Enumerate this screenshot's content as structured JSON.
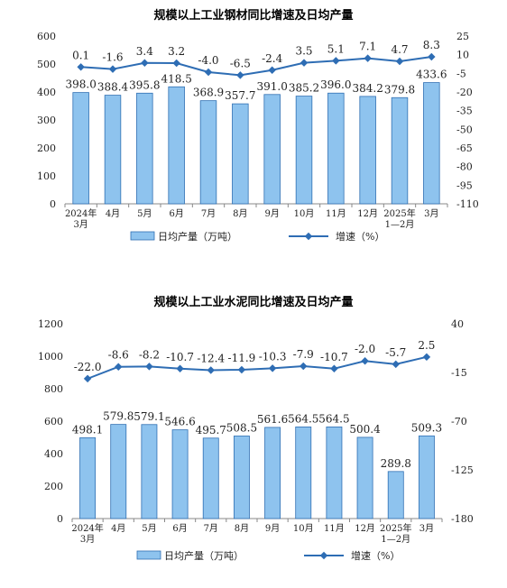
{
  "chart_data": [
    {
      "type": "bar+line",
      "title": "规模以上工业钢材同比增速及日均产量",
      "categories": [
        "2024年\n3月",
        "4月",
        "5月",
        "6月",
        "7月",
        "8月",
        "9月",
        "10月",
        "11月",
        "12月",
        "2025年\n1—2月",
        "3月"
      ],
      "series": [
        {
          "name": "日均产量（万吨）",
          "type": "bar",
          "axis": "left",
          "values": [
            398.0,
            388.4,
            395.8,
            418.5,
            368.9,
            357.7,
            391.0,
            385.2,
            396.0,
            384.2,
            379.8,
            433.6
          ]
        },
        {
          "name": "增速（%）",
          "type": "line",
          "axis": "right",
          "values": [
            0.1,
            -1.6,
            3.4,
            3.2,
            -4.0,
            -6.5,
            -2.4,
            3.5,
            5.1,
            7.1,
            4.7,
            8.3
          ]
        }
      ],
      "ylim_left": [
        0,
        600
      ],
      "yticks_left": [
        0,
        100,
        200,
        300,
        400,
        500,
        600
      ],
      "ylim_right": [
        -110,
        25
      ],
      "yticks_right": [
        25,
        10,
        -5,
        -20,
        -35,
        -50,
        -65,
        -80,
        -95,
        -110
      ],
      "legend_position": "bottom",
      "colors": {
        "bar_fill": "#8ec3ee",
        "bar_stroke": "#2f6fb3",
        "line": "#2e6db4"
      }
    },
    {
      "type": "bar+line",
      "title": "规模以上工业水泥同比增速及日均产量",
      "categories": [
        "2024年\n3月",
        "4月",
        "5月",
        "6月",
        "7月",
        "8月",
        "9月",
        "10月",
        "11月",
        "12月",
        "2025年\n1—2月",
        "3月"
      ],
      "series": [
        {
          "name": "日均产量（万吨）",
          "type": "bar",
          "axis": "left",
          "values": [
            498.1,
            579.8,
            579.1,
            546.6,
            495.7,
            508.5,
            561.6,
            564.5,
            564.5,
            500.4,
            289.8,
            509.3
          ]
        },
        {
          "name": "增速（%）",
          "type": "line",
          "axis": "right",
          "values": [
            -22.0,
            -8.6,
            -8.2,
            -10.7,
            -12.4,
            -11.9,
            -10.3,
            -7.9,
            -10.7,
            -2.0,
            -5.7,
            2.5
          ]
        }
      ],
      "ylim_left": [
        0,
        1200
      ],
      "yticks_left": [
        0,
        200,
        400,
        600,
        800,
        1000,
        1200
      ],
      "ylim_right": [
        -180,
        40
      ],
      "yticks_right": [
        40,
        -15,
        -70,
        -125,
        -180
      ],
      "legend_position": "bottom",
      "colors": {
        "bar_fill": "#8ec3ee",
        "bar_stroke": "#2f6fb3",
        "line": "#2e6db4"
      }
    }
  ]
}
